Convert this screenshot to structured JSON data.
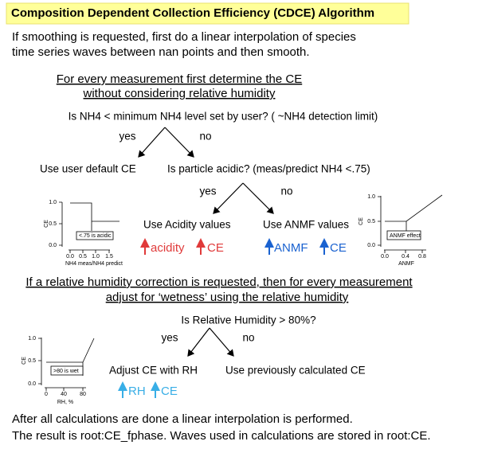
{
  "title": "Composition Dependent Collection Efficiency (CDCE) Algorithm",
  "intro": [
    "If smoothing is requested, first do a linear interpolation of species",
    "time series waves between nan points and then smooth."
  ],
  "step1": {
    "heading": [
      "For every measurement first determine the CE",
      "without considering relative humidity"
    ],
    "q1": {
      "text": "Is NH4 < minimum NH4 level set by user? ( ~NH4 detection limit)",
      "yes": "yes",
      "no": "no",
      "yes_action": "Use user default CE"
    },
    "q2": {
      "text": "Is particle acidic? (meas/predict NH4 <.75)",
      "yes": "yes",
      "no": "no",
      "yes_action": "Use Acidity values",
      "no_action": "Use ANMF values",
      "yes_effect": [
        "acidity",
        "CE"
      ],
      "no_effect": [
        "ANMF",
        "CE"
      ]
    }
  },
  "step2": {
    "heading": [
      "If a relative humidity correction is requested, then for every measurement",
      "adjust for ‘wetness’ using the relative humidity"
    ],
    "q": {
      "text": "Is Relative Humidity > 80%?",
      "yes": "yes",
      "no": "no",
      "yes_action": "Adjust CE with RH",
      "no_action": "Use previously calculated CE",
      "yes_effect": [
        "RH",
        "CE"
      ]
    }
  },
  "plots": [
    {
      "y_label": "CE",
      "x_label": "NH4 meas/NH4 predict",
      "yticks": [
        "1.0",
        "0.5",
        "0.0"
      ],
      "xticks": [
        "0.0",
        "0.5",
        "1.0",
        "1.5"
      ],
      "note": "<.75 is acidic"
    },
    {
      "y_label": "CE",
      "x_label": "ANMF",
      "yticks": [
        "1.0",
        "0.5",
        "0.0"
      ],
      "xticks": [
        "0.0",
        "0.4",
        "0.8"
      ],
      "note": "ANMF effect"
    },
    {
      "y_label": "CE",
      "x_label": "RH, %",
      "yticks": [
        "1.0",
        "0.5",
        "0.0"
      ],
      "xticks": [
        "0",
        "40",
        "80"
      ],
      "note": ">80 is wet"
    }
  ],
  "outro": [
    "After all calculations are done a linear interpolation is performed.",
    "The result is root:CE_fphase. Waves used in calculations are stored in root:CE."
  ]
}
